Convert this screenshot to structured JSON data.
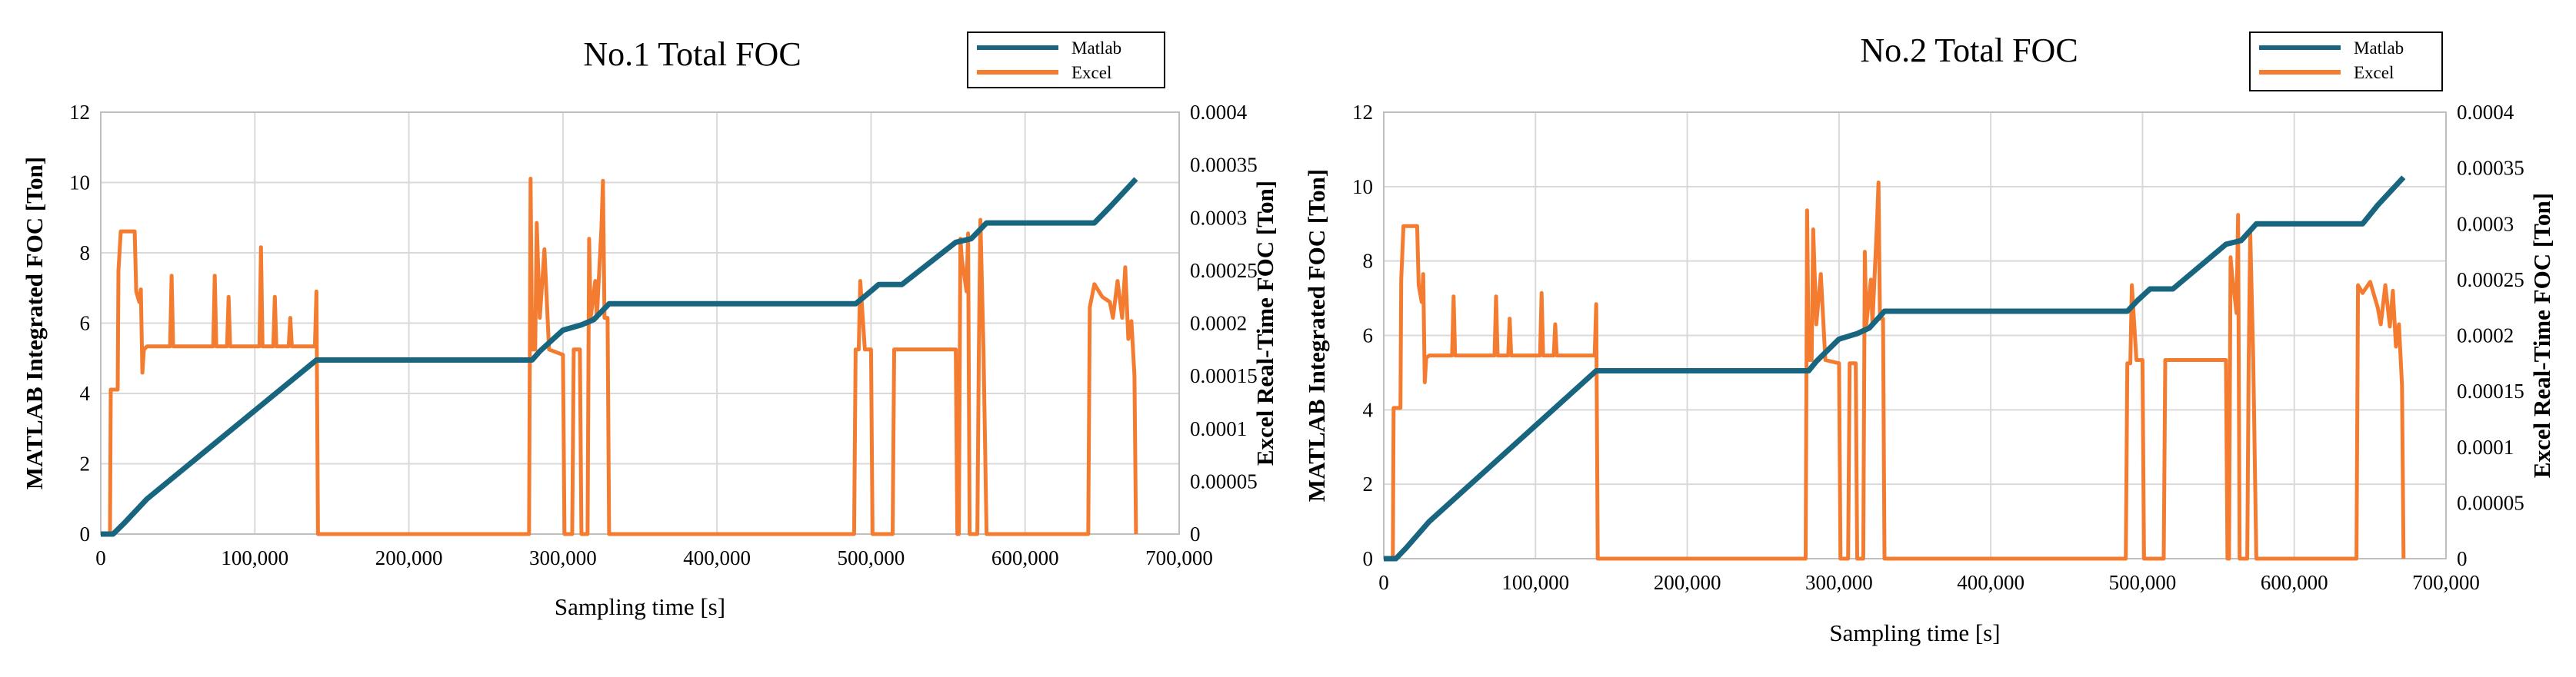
{
  "chart_data": [
    {
      "type": "line",
      "title": "No.1 Total FOC",
      "xlabel": "Sampling time [s]",
      "ylabel": "MATLAB Integrated FOC [Ton]",
      "y2label": "Excel Real-Time FOC [Ton]",
      "xlim": [
        0,
        700000
      ],
      "ylim": [
        0,
        12
      ],
      "y2lim": [
        0,
        0.0004
      ],
      "x_ticks": [
        "0",
        "100,000",
        "200,000",
        "300,000",
        "400,000",
        "500,000",
        "600,000",
        "700,000"
      ],
      "y_ticks": [
        "0",
        "2",
        "4",
        "6",
        "8",
        "10",
        "12"
      ],
      "y2_ticks": [
        "0",
        "0.00005",
        "0.0001",
        "0.00015",
        "0.0002",
        "0.00025",
        "0.0003",
        "0.00035",
        "0.0004"
      ],
      "legend_position": "top-right",
      "grid": true,
      "series": [
        {
          "name": "Matlab",
          "axis": "left",
          "color": "#17657f",
          "points": [
            [
              0,
              0
            ],
            [
              8000,
              0
            ],
            [
              15000,
              0.3
            ],
            [
              30000,
              1.0
            ],
            [
              140000,
              4.95
            ],
            [
              280000,
              4.95
            ],
            [
              285000,
              5.2
            ],
            [
              300000,
              5.8
            ],
            [
              312000,
              5.95
            ],
            [
              320000,
              6.1
            ],
            [
              330000,
              6.55
            ],
            [
              490000,
              6.55
            ],
            [
              497000,
              6.8
            ],
            [
              505000,
              7.1
            ],
            [
              520000,
              7.1
            ],
            [
              555000,
              8.3
            ],
            [
              565000,
              8.4
            ],
            [
              575000,
              8.85
            ],
            [
              645000,
              8.85
            ],
            [
              655000,
              9.3
            ],
            [
              672000,
              10.1
            ]
          ]
        },
        {
          "name": "Excel",
          "axis": "right",
          "color": "#f47c30",
          "points": [
            [
              0,
              0
            ],
            [
              6000,
              0
            ],
            [
              6500,
              0.000137
            ],
            [
              11000,
              0.000137
            ],
            [
              11500,
              0.00025
            ],
            [
              13000,
              0.000287
            ],
            [
              22000,
              0.000287
            ],
            [
              23000,
              0.00023
            ],
            [
              25000,
              0.00022
            ],
            [
              26000,
              0.000232
            ],
            [
              27000,
              0.000153
            ],
            [
              28000,
              0.000175
            ],
            [
              30000,
              0.000178
            ],
            [
              45000,
              0.000178
            ],
            [
              46000,
              0.000245
            ],
            [
              47000,
              0.000178
            ],
            [
              73000,
              0.000178
            ],
            [
              74000,
              0.000245
            ],
            [
              75000,
              0.000178
            ],
            [
              82000,
              0.000178
            ],
            [
              83000,
              0.000225
            ],
            [
              84000,
              0.000178
            ],
            [
              103000,
              0.000178
            ],
            [
              104000,
              0.000272
            ],
            [
              105000,
              0.000178
            ],
            [
              112000,
              0.000178
            ],
            [
              113000,
              0.000225
            ],
            [
              114000,
              0.000178
            ],
            [
              122000,
              0.000178
            ],
            [
              123000,
              0.000205
            ],
            [
              124000,
              0.000178
            ],
            [
              139000,
              0.000178
            ],
            [
              140000,
              0.00023
            ],
            [
              141000,
              0
            ],
            [
              278000,
              0
            ],
            [
              279000,
              0.000337
            ],
            [
              280000,
              0.000175
            ],
            [
              282000,
              0.000175
            ],
            [
              283000,
              0.000295
            ],
            [
              285000,
              0.000205
            ],
            [
              288000,
              0.00027
            ],
            [
              291000,
              0.000175
            ],
            [
              300000,
              0.00017
            ],
            [
              301000,
              0
            ],
            [
              306000,
              0
            ],
            [
              307000,
              0.000175
            ],
            [
              311000,
              0.000175
            ],
            [
              312000,
              0
            ],
            [
              316000,
              0
            ],
            [
              317000,
              0.00028
            ],
            [
              318000,
              0.000205
            ],
            [
              321000,
              0.00024
            ],
            [
              322000,
              0.000205
            ],
            [
              325000,
              0.00029
            ],
            [
              326000,
              0.000335
            ],
            [
              327000,
              0.000205
            ],
            [
              329000,
              0.000205
            ],
            [
              330000,
              0
            ],
            [
              489000,
              0
            ],
            [
              490000,
              0.000175
            ],
            [
              492000,
              0.000175
            ],
            [
              493000,
              0.00024
            ],
            [
              496000,
              0.000175
            ],
            [
              500000,
              0.000175
            ],
            [
              501000,
              0
            ],
            [
              514000,
              0
            ],
            [
              515000,
              0.000175
            ],
            [
              555000,
              0.000175
            ],
            [
              556000,
              0
            ],
            [
              557000,
              0
            ],
            [
              558000,
              0.00028
            ],
            [
              559000,
              0.00026
            ],
            [
              562000,
              0.00023
            ],
            [
              563000,
              0.000285
            ],
            [
              564000,
              0
            ],
            [
              569000,
              0
            ],
            [
              570000,
              0.000175
            ],
            [
              571000,
              0.000298
            ],
            [
              573000,
              0.000175
            ],
            [
              575000,
              0
            ],
            [
              641000,
              0
            ],
            [
              642000,
              0.000215
            ],
            [
              645000,
              0.000237
            ],
            [
              650000,
              0.000225
            ],
            [
              655000,
              0.00022
            ],
            [
              657000,
              0.000205
            ],
            [
              660000,
              0.00024
            ],
            [
              663000,
              0.000205
            ],
            [
              665000,
              0.000253
            ],
            [
              667000,
              0.000185
            ],
            [
              669000,
              0.000202
            ],
            [
              671000,
              0.00015
            ],
            [
              672000,
              0
            ]
          ]
        }
      ]
    },
    {
      "type": "line",
      "title": "No.2 Total FOC",
      "xlabel": "Sampling time [s]",
      "ylabel": "MATLAB Integrated FOC [Ton]",
      "y2label": "Excel Real-Time FOC [Ton]",
      "xlim": [
        0,
        700000
      ],
      "ylim": [
        0,
        12
      ],
      "y2lim": [
        0,
        0.0004
      ],
      "x_ticks": [
        "0",
        "100,000",
        "200,000",
        "300,000",
        "400,000",
        "500,000",
        "600,000",
        "700,000"
      ],
      "y_ticks": [
        "0",
        "2",
        "4",
        "6",
        "8",
        "10",
        "12"
      ],
      "y2_ticks": [
        "0",
        "0.00005",
        "0.0001",
        "0.00015",
        "0.0002",
        "0.00025",
        "0.0003",
        "0.00035",
        "0.0004"
      ],
      "legend_position": "top-right",
      "grid": true,
      "series": [
        {
          "name": "Matlab",
          "axis": "left",
          "color": "#17657f",
          "points": [
            [
              0,
              0
            ],
            [
              8000,
              0
            ],
            [
              15000,
              0.3
            ],
            [
              30000,
              1.0
            ],
            [
              140000,
              5.05
            ],
            [
              280000,
              5.05
            ],
            [
              285000,
              5.3
            ],
            [
              300000,
              5.9
            ],
            [
              312000,
              6.05
            ],
            [
              320000,
              6.2
            ],
            [
              330000,
              6.65
            ],
            [
              490000,
              6.65
            ],
            [
              497000,
              6.95
            ],
            [
              505000,
              7.25
            ],
            [
              520000,
              7.25
            ],
            [
              555000,
              8.45
            ],
            [
              565000,
              8.55
            ],
            [
              575000,
              9.0
            ],
            [
              645000,
              9.0
            ],
            [
              655000,
              9.5
            ],
            [
              672000,
              10.25
            ]
          ]
        },
        {
          "name": "Excel",
          "axis": "right",
          "color": "#f47c30",
          "points": [
            [
              0,
              0
            ],
            [
              6000,
              0
            ],
            [
              6500,
              0.000135
            ],
            [
              11000,
              0.000135
            ],
            [
              11500,
              0.00025
            ],
            [
              13000,
              0.000298
            ],
            [
              22000,
              0.000298
            ],
            [
              23000,
              0.000245
            ],
            [
              25000,
              0.00023
            ],
            [
              26000,
              0.000255
            ],
            [
              27000,
              0.000158
            ],
            [
              28000,
              0.00018
            ],
            [
              30000,
              0.000182
            ],
            [
              45000,
              0.000182
            ],
            [
              46000,
              0.000235
            ],
            [
              47000,
              0.000182
            ],
            [
              73000,
              0.000182
            ],
            [
              74000,
              0.000235
            ],
            [
              75000,
              0.000182
            ],
            [
              82000,
              0.000182
            ],
            [
              83000,
              0.000215
            ],
            [
              84000,
              0.000182
            ],
            [
              103000,
              0.000182
            ],
            [
              104000,
              0.000238
            ],
            [
              105000,
              0.000182
            ],
            [
              112000,
              0.000182
            ],
            [
              113000,
              0.00021
            ],
            [
              114000,
              0.000182
            ],
            [
              139000,
              0.000182
            ],
            [
              140000,
              0.000228
            ],
            [
              141000,
              0
            ],
            [
              278000,
              0
            ],
            [
              279000,
              0.000312
            ],
            [
              280000,
              0.000178
            ],
            [
              282000,
              0.000178
            ],
            [
              283000,
              0.000295
            ],
            [
              285000,
              0.00021
            ],
            [
              288000,
              0.000255
            ],
            [
              291000,
              0.000178
            ],
            [
              300000,
              0.000175
            ],
            [
              301000,
              0
            ],
            [
              306000,
              0
            ],
            [
              307000,
              0.000175
            ],
            [
              311000,
              0.000175
            ],
            [
              312000,
              0
            ],
            [
              316000,
              0
            ],
            [
              317000,
              0.000275
            ],
            [
              318000,
              0.00021
            ],
            [
              321000,
              0.00025
            ],
            [
              322000,
              0.00021
            ],
            [
              325000,
              0.0003
            ],
            [
              326000,
              0.000337
            ],
            [
              327000,
              0.000215
            ],
            [
              329000,
              0.000215
            ],
            [
              330000,
              0
            ],
            [
              489000,
              0
            ],
            [
              490000,
              0.000175
            ],
            [
              492000,
              0.000175
            ],
            [
              493000,
              0.000245
            ],
            [
              496000,
              0.000178
            ],
            [
              500000,
              0.000178
            ],
            [
              501000,
              0
            ],
            [
              514000,
              0
            ],
            [
              515000,
              0.000178
            ],
            [
              555000,
              0.000178
            ],
            [
              556000,
              0
            ],
            [
              557000,
              0
            ],
            [
              558000,
              0.00027
            ],
            [
              559000,
              0.000255
            ],
            [
              562000,
              0.00022
            ],
            [
              563000,
              0.000308
            ],
            [
              564000,
              0
            ],
            [
              569000,
              0
            ],
            [
              570000,
              0.000178
            ],
            [
              571000,
              0.000292
            ],
            [
              573000,
              0.000178
            ],
            [
              575000,
              0
            ],
            [
              641000,
              0
            ],
            [
              642000,
              0.000245
            ],
            [
              645000,
              0.000238
            ],
            [
              650000,
              0.000248
            ],
            [
              655000,
              0.000225
            ],
            [
              657000,
              0.00021
            ],
            [
              660000,
              0.000245
            ],
            [
              663000,
              0.000208
            ],
            [
              665000,
              0.00024
            ],
            [
              667000,
              0.00019
            ],
            [
              669000,
              0.00021
            ],
            [
              671000,
              0.000155
            ],
            [
              672000,
              0
            ]
          ]
        }
      ]
    }
  ]
}
